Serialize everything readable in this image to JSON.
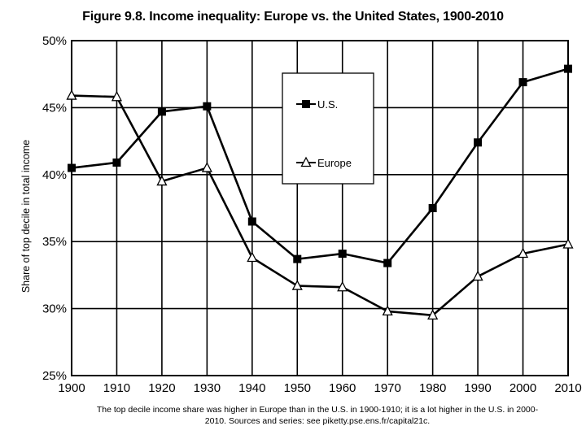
{
  "title": "Figure 9.8. Income inequality: Europe vs. the United States, 1900-2010",
  "caption": "The top decile income share was higher in Europe than in the U.S. in 1900-1910; it is a lot higher in the U.S. in 2000-2010. Sources and series: see piketty.pse.ens.fr/capital21c.",
  "chart_data": {
    "type": "line",
    "title": "Figure 9.8. Income inequality: Europe vs. the United States, 1900-2010",
    "xlabel": "",
    "ylabel": "Share of top decile in total income",
    "x": [
      1900,
      1910,
      1920,
      1930,
      1940,
      1950,
      1960,
      1970,
      1980,
      1990,
      2000,
      2010
    ],
    "xlim": [
      1900,
      2010
    ],
    "ylim": [
      0.25,
      0.5
    ],
    "yticks": [
      0.25,
      0.3,
      0.35,
      0.4,
      0.45,
      0.5
    ],
    "ytick_labels": [
      "25%",
      "30%",
      "35%",
      "40%",
      "45%",
      "50%"
    ],
    "xtick_labels": [
      "1900",
      "1910",
      "1920",
      "1930",
      "1940",
      "1950",
      "1960",
      "1970",
      "1980",
      "1990",
      "2000",
      "2010"
    ],
    "grid": "horizontal and vertical",
    "legend_position": "top-center",
    "series": [
      {
        "name": "U.S.",
        "marker": "filled-square",
        "color": "#000000",
        "values": [
          0.405,
          0.409,
          0.447,
          0.451,
          0.365,
          0.337,
          0.341,
          0.334,
          0.375,
          0.424,
          0.469,
          0.479
        ]
      },
      {
        "name": "Europe",
        "marker": "open-triangle",
        "color": "#000000",
        "values": [
          0.459,
          0.458,
          0.395,
          0.405,
          0.338,
          0.317,
          0.316,
          0.298,
          0.295,
          0.324,
          0.341,
          0.348
        ]
      }
    ]
  }
}
